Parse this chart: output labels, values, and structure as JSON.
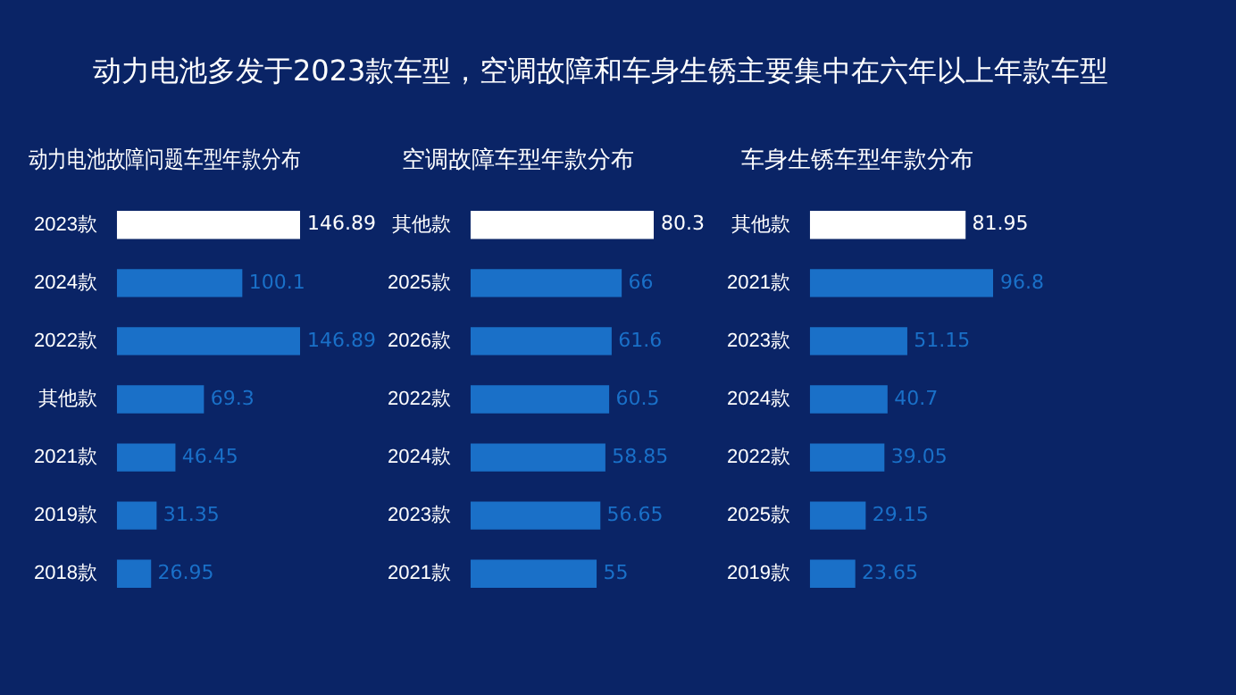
{
  "chart_data": [
    {
      "type": "other",
      "title": "动力电池多发于2023款车型，空调故障和车身生锈主要集中在六年以上年款车型"
    },
    {
      "type": "bar",
      "orientation": "horizontal",
      "title": "动力电池故障问题车型年款分布",
      "categories": [
        "2023款",
        "2024款",
        "2022款",
        "其他款",
        "2021款",
        "2019款",
        "2018款"
      ],
      "values": [
        146.89,
        100.1,
        146.89,
        69.3,
        46.45,
        31.35,
        26.95
      ],
      "colors": [
        "#ffffff",
        "#1a70c8",
        "#1a70c8",
        "#1a70c8",
        "#1a70c8",
        "#1a70c8",
        "#1a70c8"
      ],
      "data_labels": true
    },
    {
      "type": "bar",
      "orientation": "horizontal",
      "title": "空调故障车型年款分布",
      "categories": [
        "其他款",
        "2025款",
        "2026款",
        "2022款",
        "2024款",
        "2023款",
        "2021款"
      ],
      "values": [
        80.3,
        66,
        61.6,
        60.5,
        58.85,
        56.65,
        55
      ],
      "colors": [
        "#ffffff",
        "#1a70c8",
        "#1a70c8",
        "#1a70c8",
        "#1a70c8",
        "#1a70c8",
        "#1a70c8"
      ],
      "data_labels": true
    },
    {
      "type": "bar",
      "orientation": "horizontal",
      "title": "车身生锈车型年款分布",
      "categories": [
        "其他款",
        "2021款",
        "2023款",
        "2024款",
        "2022款",
        "2025款",
        "2019款"
      ],
      "values": [
        81.95,
        96.8,
        51.15,
        40.7,
        39.05,
        29.15,
        23.65
      ],
      "colors": [
        "#ffffff",
        "#1a70c8",
        "#1a70c8",
        "#1a70c8",
        "#1a70c8",
        "#1a70c8",
        "#1a70c8"
      ],
      "data_labels": true
    }
  ]
}
